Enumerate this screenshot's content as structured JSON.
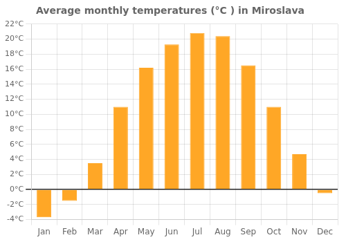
{
  "chart_data": {
    "type": "bar",
    "title": "Average monthly temperatures (°C ) in Miroslava",
    "categories": [
      "Jan",
      "Feb",
      "Mar",
      "Apr",
      "May",
      "Jun",
      "Jul",
      "Aug",
      "Sep",
      "Oct",
      "Nov",
      "Dec"
    ],
    "values": [
      -3.7,
      -1.5,
      3.5,
      11.0,
      16.2,
      19.3,
      20.8,
      20.4,
      16.5,
      11.0,
      4.7,
      -0.5
    ],
    "color": "#FFA726",
    "ylim": [
      -4,
      22
    ],
    "yticks": [
      {
        "value": -4,
        "label": "-4°C"
      },
      {
        "value": -2,
        "label": "-2°C"
      },
      {
        "value": 0,
        "label": "0°C"
      },
      {
        "value": 2,
        "label": "2°C"
      },
      {
        "value": 4,
        "label": "4°C"
      },
      {
        "value": 6,
        "label": "6°C"
      },
      {
        "value": 8,
        "label": "8°C"
      },
      {
        "value": 10,
        "label": "10°C"
      },
      {
        "value": 12,
        "label": "12°C"
      },
      {
        "value": 14,
        "label": "14°C"
      },
      {
        "value": 16,
        "label": "16°C"
      },
      {
        "value": 18,
        "label": "18°C"
      },
      {
        "value": 20,
        "label": "20°C"
      },
      {
        "value": 22,
        "label": "22°C"
      }
    ],
    "grid": true
  }
}
